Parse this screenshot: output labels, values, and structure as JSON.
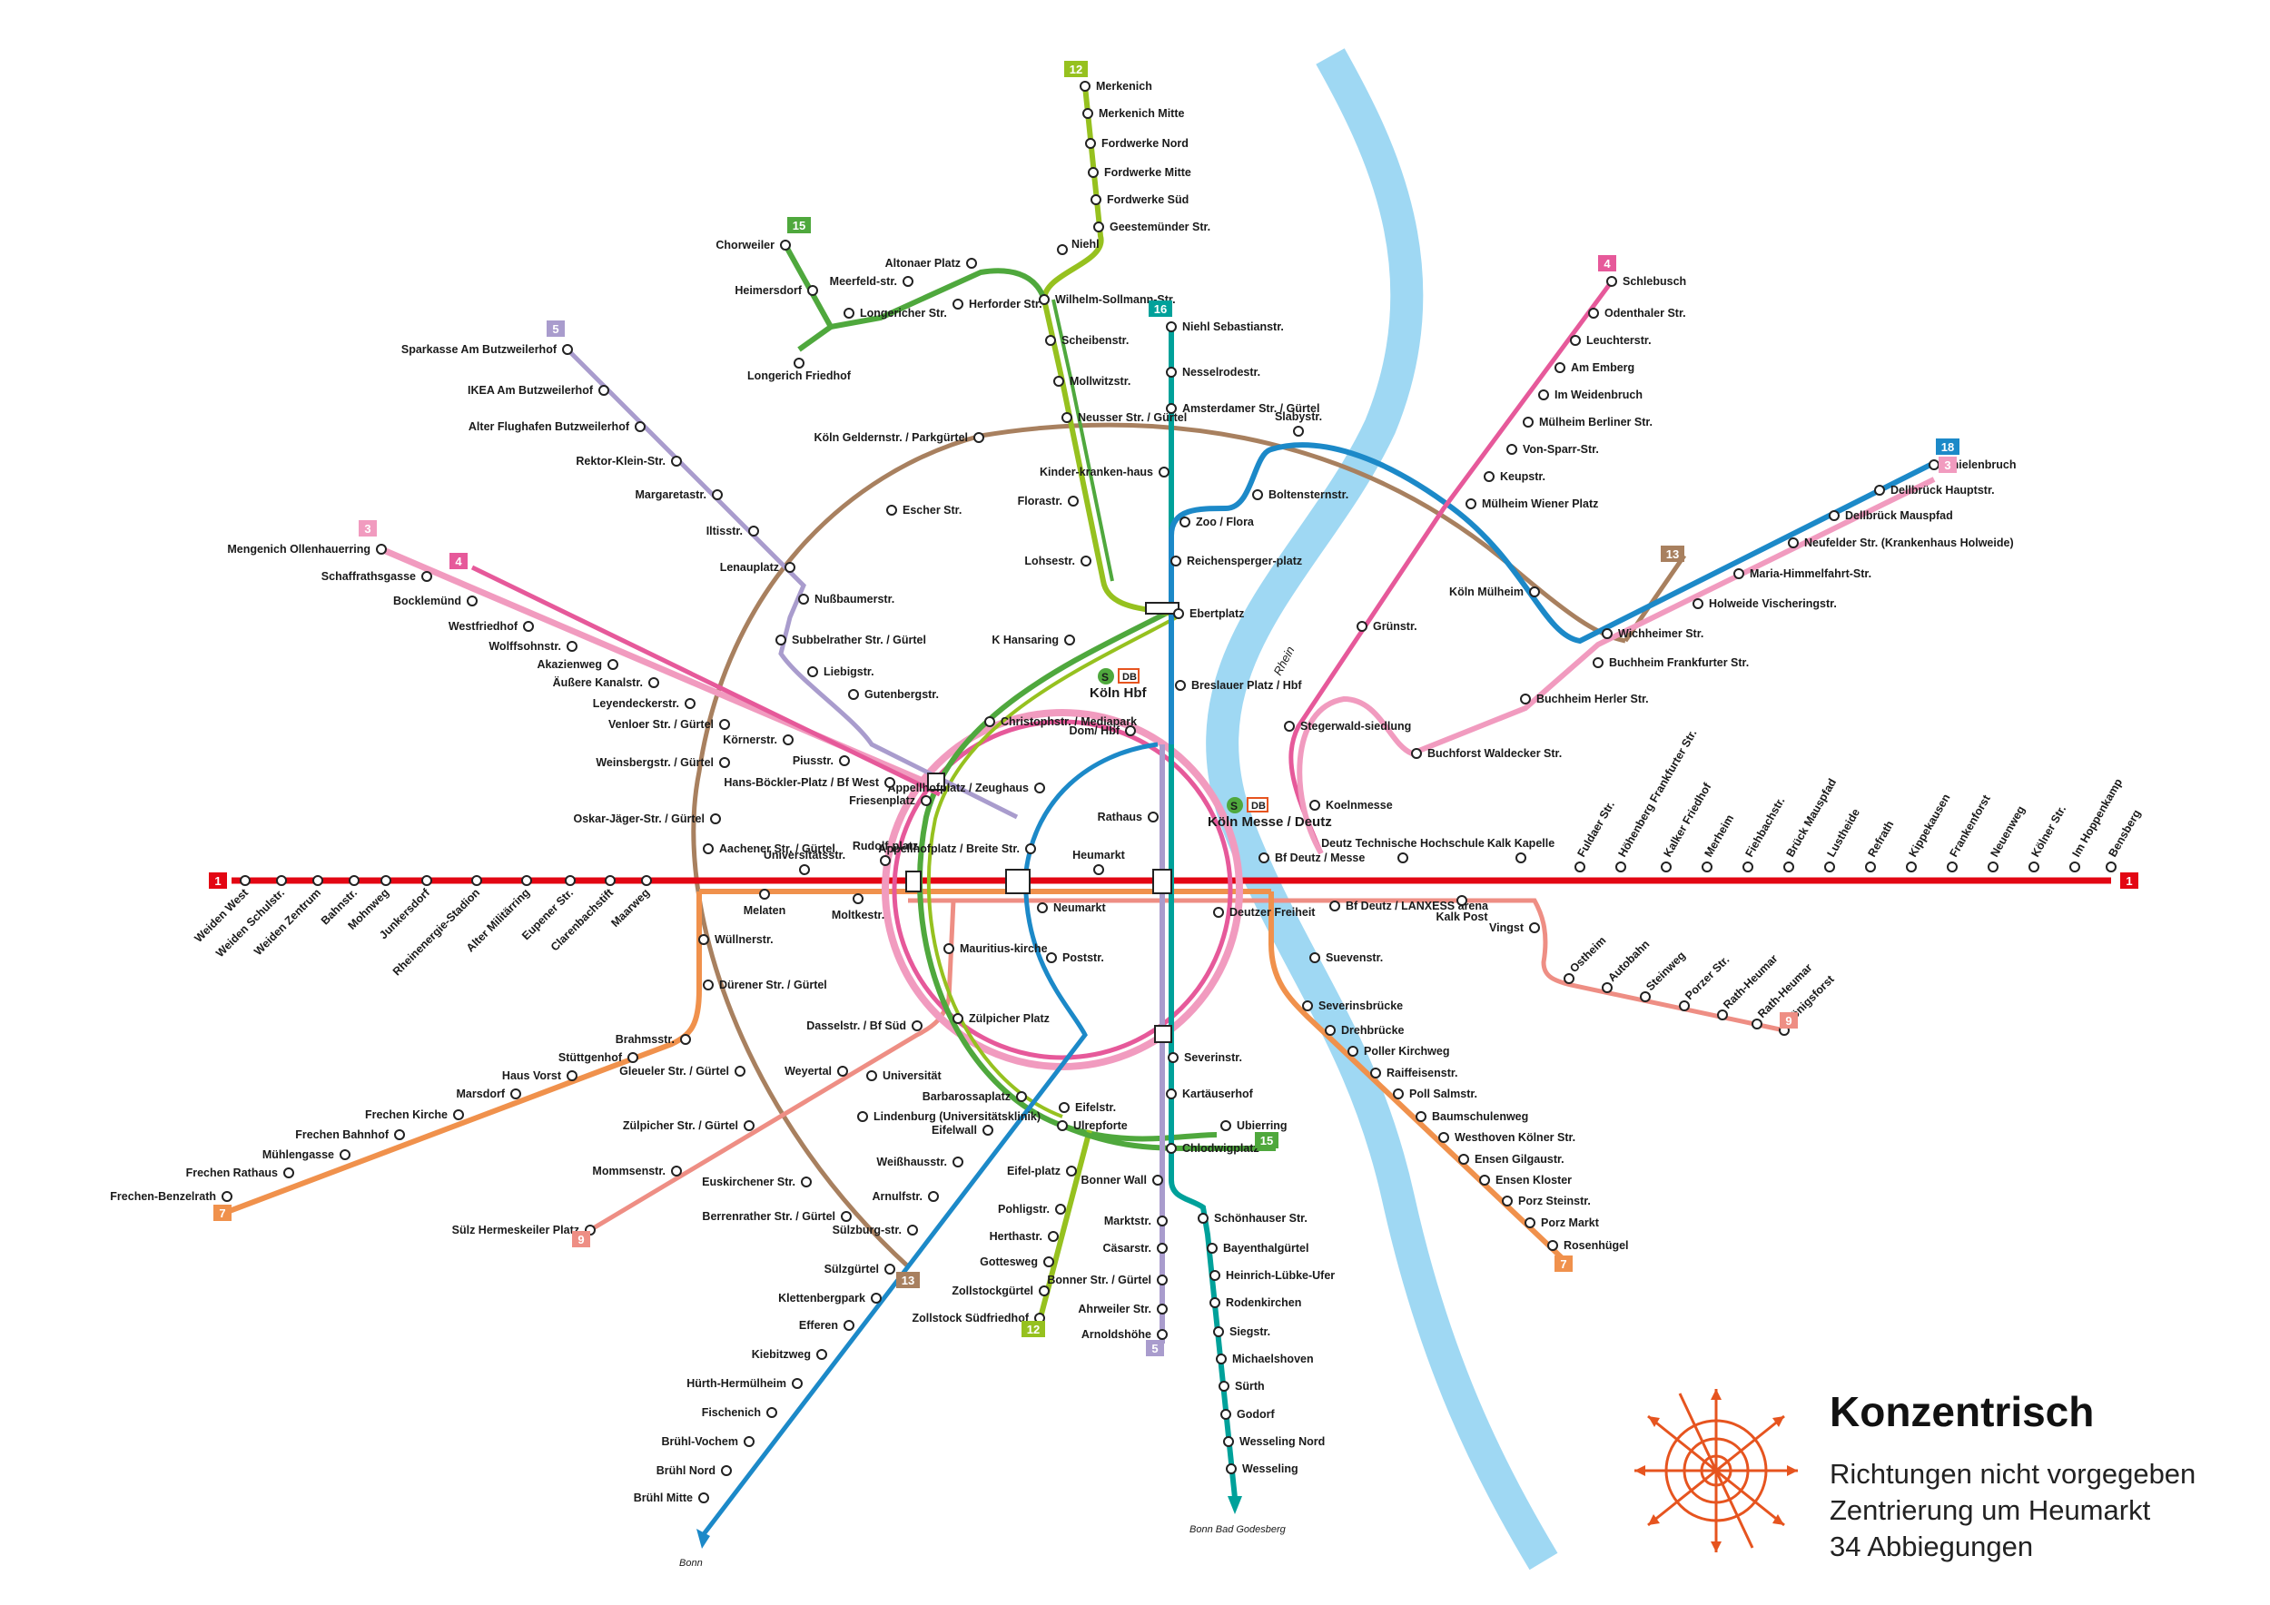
{
  "legend": {
    "title": "Konzentrisch",
    "lines": [
      "Richtungen nicht vorgegeben",
      "Zentrierung um Heumarkt",
      "34 Abbiegungen"
    ]
  },
  "river": {
    "name": "Rhein"
  },
  "hubs": {
    "hbf": "Köln Hbf",
    "messe": "Köln Messe / Deutz",
    "db": "DB",
    "sbahn": "S"
  },
  "terminal_notes": {
    "bonn": "Bonn",
    "bonn_bg": "Bonn Bad Godesberg"
  },
  "colors": {
    "line1": "#e30613",
    "line3": "#f19bbf",
    "line4": "#e6599a",
    "line5": "#a99ccd",
    "line7": "#f0914c",
    "line9": "#ee8e84",
    "line12": "#96c11f",
    "line13": "#a8805f",
    "line15": "#4fa83d",
    "line16": "#00a19a",
    "line18": "#1c89c8",
    "river": "#9fd8f3"
  },
  "badges": [
    {
      "id": "b1w",
      "text": "1",
      "color": "#e30613"
    },
    {
      "id": "b1e",
      "text": "1",
      "color": "#e30613"
    },
    {
      "id": "b3w",
      "text": "3",
      "color": "#f19bbf"
    },
    {
      "id": "b3e",
      "text": "3",
      "color": "#f19bbf"
    },
    {
      "id": "b4w",
      "text": "4",
      "color": "#e6599a"
    },
    {
      "id": "b4e",
      "text": "4",
      "color": "#e6599a"
    },
    {
      "id": "b5n",
      "text": "5",
      "color": "#a99ccd"
    },
    {
      "id": "b5s",
      "text": "5",
      "color": "#a99ccd"
    },
    {
      "id": "b7w",
      "text": "7",
      "color": "#f0914c"
    },
    {
      "id": "b7e",
      "text": "7",
      "color": "#f0914c"
    },
    {
      "id": "b9w",
      "text": "9",
      "color": "#ee8e84"
    },
    {
      "id": "b9e",
      "text": "9",
      "color": "#ee8e84"
    },
    {
      "id": "b12n",
      "text": "12",
      "color": "#96c11f"
    },
    {
      "id": "b12s",
      "text": "12",
      "color": "#96c11f"
    },
    {
      "id": "b13s",
      "text": "13",
      "color": "#a8805f"
    },
    {
      "id": "b13e",
      "text": "13",
      "color": "#a8805f"
    },
    {
      "id": "b15n",
      "text": "15",
      "color": "#4fa83d"
    },
    {
      "id": "b15e",
      "text": "15",
      "color": "#4fa83d"
    },
    {
      "id": "b16n",
      "text": "16",
      "color": "#00a19a"
    },
    {
      "id": "b18e",
      "text": "18",
      "color": "#1c89c8"
    }
  ],
  "stations": [
    {
      "id": "s1",
      "name": "Weiden West"
    },
    {
      "id": "s2",
      "name": "Weiden Schulstr."
    },
    {
      "id": "s3",
      "name": "Weiden Zentrum"
    },
    {
      "id": "s4",
      "name": "Bahnstr."
    },
    {
      "id": "s5",
      "name": "Mohnweg"
    },
    {
      "id": "s6",
      "name": "Junkersdorf"
    },
    {
      "id": "s7",
      "name": "Rheinenergie-Stadion"
    },
    {
      "id": "s8",
      "name": "Alter Militärring"
    },
    {
      "id": "s9",
      "name": "Eupener Str."
    },
    {
      "id": "s10",
      "name": "Clarenbachstift"
    },
    {
      "id": "s11",
      "name": "Maarweg"
    },
    {
      "id": "s12",
      "name": "Aachener Str. / Gürtel"
    },
    {
      "id": "s13",
      "name": "Melaten"
    },
    {
      "id": "s14",
      "name": "Universitätsstr."
    },
    {
      "id": "s15",
      "name": "Moltkestr."
    },
    {
      "id": "s16",
      "name": "Rudolf-platz"
    },
    {
      "id": "s17",
      "name": "Neumarkt"
    },
    {
      "id": "s18",
      "name": "Heumarkt"
    },
    {
      "id": "s19",
      "name": "Deutzer Freiheit"
    },
    {
      "id": "s20",
      "name": "Bf Deutz / Messe"
    },
    {
      "id": "s21",
      "name": "Bf Deutz / LANXESS arena"
    },
    {
      "id": "s22",
      "name": "Deutz Technische Hochschule"
    },
    {
      "id": "s23",
      "name": "Kalk Post"
    },
    {
      "id": "s24",
      "name": "Kalk Kapelle"
    },
    {
      "id": "s25",
      "name": "Vingst"
    },
    {
      "id": "s26",
      "name": "Fuldaer Str."
    },
    {
      "id": "s27",
      "name": "Höhenberg Frankfurter Str."
    },
    {
      "id": "s28",
      "name": "Kalker Friedhof"
    },
    {
      "id": "s29",
      "name": "Merheim"
    },
    {
      "id": "s30",
      "name": "Fiehbachstr."
    },
    {
      "id": "s31",
      "name": "Brück Mauspfad"
    },
    {
      "id": "s32",
      "name": "Lustheide"
    },
    {
      "id": "s33",
      "name": "Refrath"
    },
    {
      "id": "s34",
      "name": "Kippekausen"
    },
    {
      "id": "s35",
      "name": "Frankenforst"
    },
    {
      "id": "s36",
      "name": "Neuenweg"
    },
    {
      "id": "s37",
      "name": "Kölner Str."
    },
    {
      "id": "s38",
      "name": "Im Hoppenkamp"
    },
    {
      "id": "s39",
      "name": "Bensberg"
    },
    {
      "id": "s40",
      "name": "Merkenich"
    },
    {
      "id": "s41",
      "name": "Merkenich Mitte"
    },
    {
      "id": "s42",
      "name": "Fordwerke Nord"
    },
    {
      "id": "s43",
      "name": "Fordwerke Mitte"
    },
    {
      "id": "s44",
      "name": "Fordwerke Süd"
    },
    {
      "id": "s45",
      "name": "Geestemünder Str."
    },
    {
      "id": "s46",
      "name": "Niehl"
    },
    {
      "id": "s47",
      "name": "Wilhelm-Sollmann-Str."
    },
    {
      "id": "s48",
      "name": "Scheibenstr."
    },
    {
      "id": "s49",
      "name": "Mollwitzstr."
    },
    {
      "id": "s50",
      "name": "Neusser Str. / Gürtel"
    },
    {
      "id": "s51",
      "name": "Florastr."
    },
    {
      "id": "s52",
      "name": "Lohsestr."
    },
    {
      "id": "s53",
      "name": "Ebertplatz"
    },
    {
      "id": "s54",
      "name": "Chorweiler"
    },
    {
      "id": "s55",
      "name": "Heimersdorf"
    },
    {
      "id": "s56",
      "name": "Longerich Friedhof"
    },
    {
      "id": "s57",
      "name": "Longericher Str."
    },
    {
      "id": "s58",
      "name": "Meerfeld-str."
    },
    {
      "id": "s59",
      "name": "Altonaer Platz"
    },
    {
      "id": "s60",
      "name": "Herforder Str."
    },
    {
      "id": "s61",
      "name": "Niehl Sebastianstr."
    },
    {
      "id": "s62",
      "name": "Nesselrodestr."
    },
    {
      "id": "s63",
      "name": "Amsterdamer Str. / Gürtel"
    },
    {
      "id": "s64",
      "name": "Kinder-kranken-haus"
    },
    {
      "id": "s65",
      "name": "Zoo / Flora"
    },
    {
      "id": "s66",
      "name": "Reichensperger-platz"
    },
    {
      "id": "s67",
      "name": "Breslauer Platz / Hbf"
    },
    {
      "id": "s68",
      "name": "Dom/ Hbf"
    },
    {
      "id": "s69",
      "name": "Rathaus"
    },
    {
      "id": "s70",
      "name": "Slabystr."
    },
    {
      "id": "s71",
      "name": "Boltensternstr."
    },
    {
      "id": "s72",
      "name": "Köln Mülheim"
    },
    {
      "id": "s73",
      "name": "Wichheimer Str."
    },
    {
      "id": "s74",
      "name": "Holweide Vischeringstr."
    },
    {
      "id": "s75",
      "name": "Maria-Himmelfahrt-Str."
    },
    {
      "id": "s76",
      "name": "Neufelder Str. (Krankenhaus Holweide)"
    },
    {
      "id": "s77",
      "name": "Dellbrück Mauspfad"
    },
    {
      "id": "s78",
      "name": "Dellbrück Hauptstr."
    },
    {
      "id": "s79",
      "name": "Thielenbruch"
    },
    {
      "id": "s80",
      "name": "Schlebusch"
    },
    {
      "id": "s81",
      "name": "Odenthaler Str."
    },
    {
      "id": "s82",
      "name": "Leuchterstr."
    },
    {
      "id": "s83",
      "name": "Am Emberg"
    },
    {
      "id": "s84",
      "name": "Im Weidenbruch"
    },
    {
      "id": "s85",
      "name": "Mülheim Berliner Str."
    },
    {
      "id": "s86",
      "name": "Von-Sparr-Str."
    },
    {
      "id": "s87",
      "name": "Keupstr."
    },
    {
      "id": "s88",
      "name": "Mülheim Wiener Platz"
    },
    {
      "id": "s89",
      "name": "Grünstr."
    },
    {
      "id": "s90",
      "name": "Stegerwald-siedlung"
    },
    {
      "id": "s91",
      "name": "Koelnmesse"
    },
    {
      "id": "s92",
      "name": "Buchheim Frankfurter Str."
    },
    {
      "id": "s93",
      "name": "Buchheim Herler Str."
    },
    {
      "id": "s94",
      "name": "Buchforst Waldecker Str."
    },
    {
      "id": "s95",
      "name": "Sparkasse Am Butzweilerhof"
    },
    {
      "id": "s96",
      "name": "IKEA Am Butzweilerhof"
    },
    {
      "id": "s97",
      "name": "Alter Flughafen Butzweilerhof"
    },
    {
      "id": "s98",
      "name": "Rektor-Klein-Str."
    },
    {
      "id": "s99",
      "name": "Margaretastr."
    },
    {
      "id": "s100",
      "name": "Iltisstr."
    },
    {
      "id": "s101",
      "name": "Lenauplatz"
    },
    {
      "id": "s102",
      "name": "Nußbaumerstr."
    },
    {
      "id": "s103",
      "name": "Subbelrather Str. / Gürtel"
    },
    {
      "id": "s104",
      "name": "Liebigstr."
    },
    {
      "id": "s105",
      "name": "Gutenbergstr."
    },
    {
      "id": "s106",
      "name": "Köln Geldernstr. / Parkgürtel"
    },
    {
      "id": "s107",
      "name": "Escher Str."
    },
    {
      "id": "s108",
      "name": "K Hansaring"
    },
    {
      "id": "s109",
      "name": "Christophstr. / Mediapark"
    },
    {
      "id": "s110",
      "name": "Appellhofplatz / Zeughaus"
    },
    {
      "id": "s111",
      "name": "Appellhofplatz / Breite Str."
    },
    {
      "id": "s112",
      "name": "Friesenplatz"
    },
    {
      "id": "s113",
      "name": "Hans-Böckler-Platz / Bf West"
    },
    {
      "id": "s114",
      "name": "Piusstr."
    },
    {
      "id": "s115",
      "name": "Körnerstr."
    },
    {
      "id": "s116",
      "name": "Venloer Str. / Gürtel"
    },
    {
      "id": "s117",
      "name": "Leyendeckerstr."
    },
    {
      "id": "s118",
      "name": "Äußere Kanalstr."
    },
    {
      "id": "s119",
      "name": "Akazienweg"
    },
    {
      "id": "s120",
      "name": "Wolffsohnstr."
    },
    {
      "id": "s121",
      "name": "Westfriedhof"
    },
    {
      "id": "s122",
      "name": "Bocklemünd"
    },
    {
      "id": "s123",
      "name": "Schaffrathsgasse"
    },
    {
      "id": "s124",
      "name": "Mengenich Ollenhauerring"
    },
    {
      "id": "s125",
      "name": "Weinsbergstr. / Gürtel"
    },
    {
      "id": "s126",
      "name": "Oskar-Jäger-Str. / Gürtel"
    },
    {
      "id": "s127",
      "name": "Wüllnerstr."
    },
    {
      "id": "s128",
      "name": "Dürener Str. / Gürtel"
    },
    {
      "id": "s129",
      "name": "Brahmsstr."
    },
    {
      "id": "s130",
      "name": "Stüttgenhof"
    },
    {
      "id": "s131",
      "name": "Haus Vorst"
    },
    {
      "id": "s132",
      "name": "Marsdorf"
    },
    {
      "id": "s133",
      "name": "Frechen Kirche"
    },
    {
      "id": "s134",
      "name": "Frechen Bahnhof"
    },
    {
      "id": "s135",
      "name": "Mühlengasse"
    },
    {
      "id": "s136",
      "name": "Frechen Rathaus"
    },
    {
      "id": "s137",
      "name": "Frechen-Benzelrath"
    },
    {
      "id": "s138",
      "name": "Gleueler Str. / Gürtel"
    },
    {
      "id": "s139",
      "name": "Zülpicher Str. / Gürtel"
    },
    {
      "id": "s140",
      "name": "Mommsenstr."
    },
    {
      "id": "s141",
      "name": "Sülz Hermeskeiler Platz"
    },
    {
      "id": "s142",
      "name": "Weyertal"
    },
    {
      "id": "s143",
      "name": "Universität"
    },
    {
      "id": "s144",
      "name": "Dasselstr. / Bf Süd"
    },
    {
      "id": "s145",
      "name": "Zülpicher Platz"
    },
    {
      "id": "s146",
      "name": "Mauritius-kirche"
    },
    {
      "id": "s147",
      "name": "Poststr."
    },
    {
      "id": "s148",
      "name": "Lindenburg (Universitätsklinik)"
    },
    {
      "id": "s149",
      "name": "Euskirchener Str."
    },
    {
      "id": "s150",
      "name": "Berrenrather Str. / Gürtel"
    },
    {
      "id": "s151",
      "name": "Sülzgürtel"
    },
    {
      "id": "s152",
      "name": "Klettenbergpark"
    },
    {
      "id": "s153",
      "name": "Efferen"
    },
    {
      "id": "s154",
      "name": "Kiebitzweg"
    },
    {
      "id": "s155",
      "name": "Hürth-Hermülheim"
    },
    {
      "id": "s156",
      "name": "Fischenich"
    },
    {
      "id": "s157",
      "name": "Brühl-Vochem"
    },
    {
      "id": "s158",
      "name": "Brühl Nord"
    },
    {
      "id": "s159",
      "name": "Brühl Mitte"
    },
    {
      "id": "s160",
      "name": "Barbarossaplatz"
    },
    {
      "id": "s161",
      "name": "Eifelwall"
    },
    {
      "id": "s162",
      "name": "Weißhausstr."
    },
    {
      "id": "s163",
      "name": "Arnulfstr."
    },
    {
      "id": "s164",
      "name": "Sülzburg-str."
    },
    {
      "id": "s165",
      "name": "Eifelstr."
    },
    {
      "id": "s166",
      "name": "Ulrepforte"
    },
    {
      "id": "s167",
      "name": "Eifel-platz"
    },
    {
      "id": "s168",
      "name": "Pohligstr."
    },
    {
      "id": "s169",
      "name": "Herthastr."
    },
    {
      "id": "s170",
      "name": "Gottesweg"
    },
    {
      "id": "s171",
      "name": "Zollstockgürtel"
    },
    {
      "id": "s172",
      "name": "Zollstock Südfriedhof"
    },
    {
      "id": "s173",
      "name": "Severinstr."
    },
    {
      "id": "s174",
      "name": "Kartäuserhof"
    },
    {
      "id": "s175",
      "name": "Chlodwigplatz"
    },
    {
      "id": "s176",
      "name": "Ubierring"
    },
    {
      "id": "s177",
      "name": "Bonner Wall"
    },
    {
      "id": "s178",
      "name": "Marktstr."
    },
    {
      "id": "s179",
      "name": "Cäsarstr."
    },
    {
      "id": "s180",
      "name": "Bonner Str. / Gürtel"
    },
    {
      "id": "s181",
      "name": "Ahrweiler Str."
    },
    {
      "id": "s182",
      "name": "Arnoldshöhe"
    },
    {
      "id": "s183",
      "name": "Schönhauser Str."
    },
    {
      "id": "s184",
      "name": "Bayenthalgürtel"
    },
    {
      "id": "s185",
      "name": "Heinrich-Lübke-Ufer"
    },
    {
      "id": "s186",
      "name": "Rodenkirchen"
    },
    {
      "id": "s187",
      "name": "Siegstr."
    },
    {
      "id": "s188",
      "name": "Michaelshoven"
    },
    {
      "id": "s189",
      "name": "Sürth"
    },
    {
      "id": "s190",
      "name": "Godorf"
    },
    {
      "id": "s191",
      "name": "Wesseling Nord"
    },
    {
      "id": "s192",
      "name": "Wesseling"
    },
    {
      "id": "s193",
      "name": "Suevenstr."
    },
    {
      "id": "s194",
      "name": "Severinsbrücke"
    },
    {
      "id": "s195",
      "name": "Drehbrücke"
    },
    {
      "id": "s196",
      "name": "Poller Kirchweg"
    },
    {
      "id": "s197",
      "name": "Raiffeisenstr."
    },
    {
      "id": "s198",
      "name": "Poll Salmstr."
    },
    {
      "id": "s199",
      "name": "Baumschulenweg"
    },
    {
      "id": "s200",
      "name": "Westhoven Kölner Str."
    },
    {
      "id": "s201",
      "name": "Ensen Gilgaustr."
    },
    {
      "id": "s202",
      "name": "Ensen Kloster"
    },
    {
      "id": "s203",
      "name": "Porz Steinstr."
    },
    {
      "id": "s204",
      "name": "Porz Markt"
    },
    {
      "id": "s205",
      "name": "Rosenhügel"
    },
    {
      "id": "s206",
      "name": "Ostheim"
    },
    {
      "id": "s207",
      "name": "Autobahn"
    },
    {
      "id": "s208",
      "name": "Steinweg"
    },
    {
      "id": "s209",
      "name": "Porzer Str."
    },
    {
      "id": "s210",
      "name": "Rath-Heumar"
    },
    {
      "id": "s211",
      "name": "Rath-Heumar"
    },
    {
      "id": "s212",
      "name": "Königsforst"
    }
  ]
}
